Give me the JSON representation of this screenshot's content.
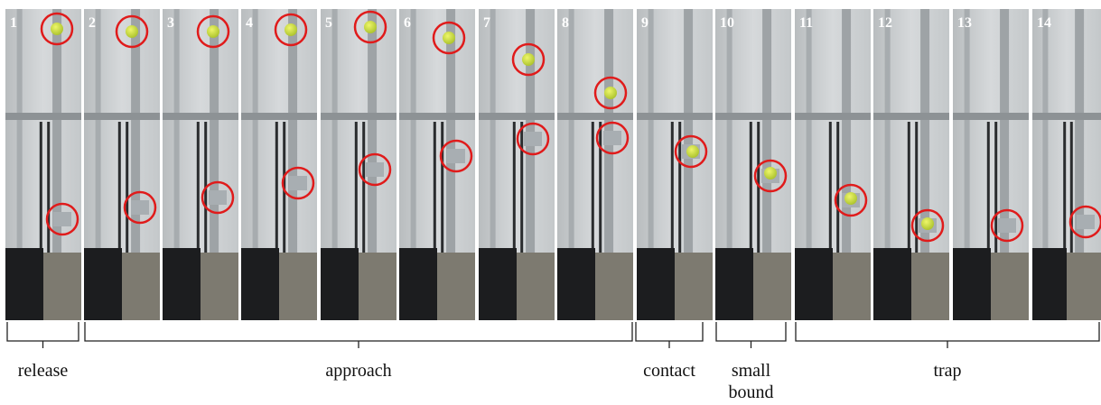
{
  "frames": [
    "1",
    "2",
    "3",
    "4",
    "5",
    "6",
    "7",
    "8",
    "9",
    "10",
    "11",
    "12",
    "13",
    "14"
  ],
  "phases": [
    {
      "label": "release"
    },
    {
      "label": "approach"
    },
    {
      "label": "contact"
    },
    {
      "label": "small\nbound"
    },
    {
      "label": "trap"
    }
  ]
}
